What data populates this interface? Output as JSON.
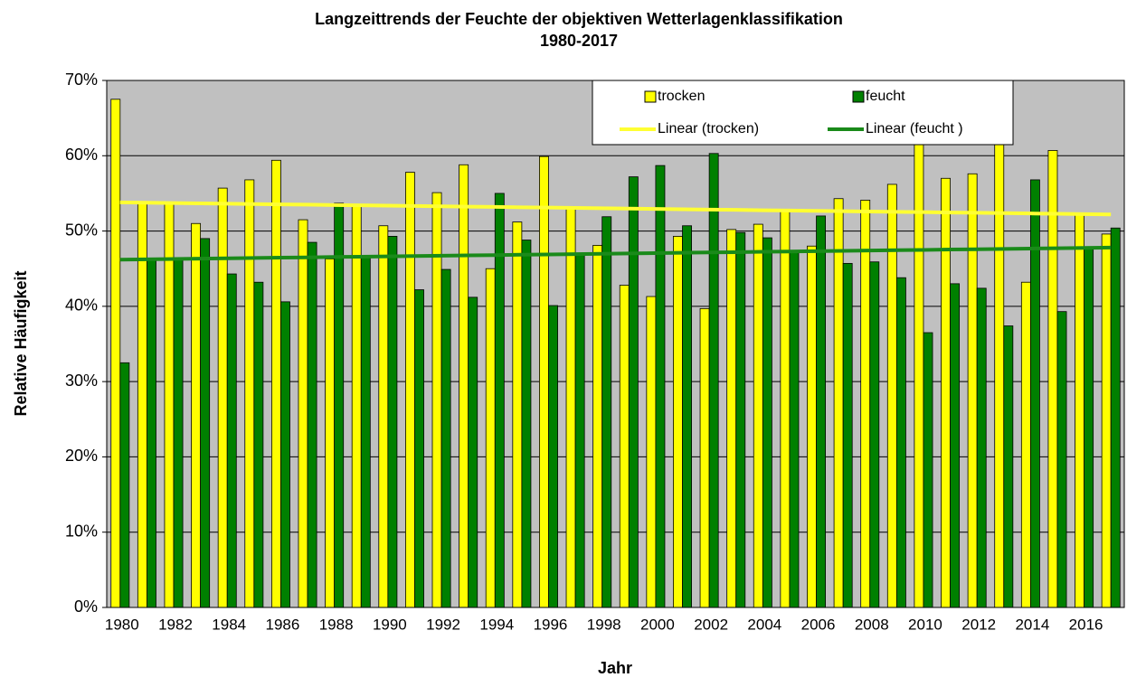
{
  "chart_data": {
    "type": "bar",
    "title": "Langzeittrends der Feuchte der objektiven Wetterlagenklassifikation",
    "subtitle": "1980-2017",
    "y_label": "Relative Häufigkeit",
    "x_label": "Jahr",
    "categories": [
      "1980",
      null,
      "1982",
      null,
      "1984",
      null,
      "1986",
      null,
      "1988",
      null,
      "1990",
      null,
      "1992",
      null,
      "1994",
      null,
      "1996",
      null,
      "1998",
      null,
      "2000",
      null,
      "2002",
      null,
      "2004",
      null,
      "2006",
      null,
      "2008",
      null,
      "2010",
      null,
      "2012",
      null,
      "2014",
      null,
      "2016",
      null
    ],
    "series": [
      {
        "name": "trocken",
        "color": "#ffff00",
        "values": [
          67.5,
          53.8,
          53.7,
          51,
          55.7,
          56.8,
          59.4,
          51.5,
          46.3,
          53.5,
          50.7,
          57.8,
          55.1,
          58.8,
          45,
          51.2,
          59.9,
          53,
          48.1,
          42.8,
          41.3,
          49.3,
          39.7,
          50.2,
          50.9,
          52.8,
          48,
          54.3,
          54.1,
          56.2,
          63.5,
          57,
          57.6,
          62.6,
          43.2,
          60.7,
          52.2,
          49.6
        ]
      },
      {
        "name": "feucht",
        "color": "#008000",
        "values": [
          32.5,
          46.2,
          46.3,
          49,
          44.3,
          43.2,
          40.6,
          48.5,
          53.7,
          46.5,
          49.3,
          42.2,
          44.9,
          41.2,
          55,
          48.8,
          40.1,
          47,
          51.9,
          57.2,
          58.7,
          50.7,
          60.3,
          49.8,
          49.1,
          47.2,
          52,
          45.7,
          45.9,
          43.8,
          36.5,
          43,
          42.4,
          37.4,
          56.8,
          39.3,
          47.8,
          50.4
        ]
      },
      {
        "name": "Linear (trocken)",
        "type": "line",
        "color": "#ffff33",
        "values": [
          53.8,
          53.76,
          53.71,
          53.67,
          53.63,
          53.58,
          53.54,
          53.5,
          53.45,
          53.41,
          53.37,
          53.32,
          53.28,
          53.24,
          53.2,
          53.15,
          53.11,
          53.07,
          53.02,
          52.98,
          52.94,
          52.89,
          52.85,
          52.81,
          52.76,
          52.72,
          52.68,
          52.64,
          52.59,
          52.55,
          52.51,
          52.46,
          52.42,
          52.38,
          52.33,
          52.29,
          52.25,
          52.2
        ]
      },
      {
        "name": "Linear (feucht )",
        "type": "line",
        "color": "#1a8a1a",
        "values": [
          46.2,
          46.24,
          46.29,
          46.33,
          46.37,
          46.42,
          46.46,
          46.5,
          46.55,
          46.59,
          46.63,
          46.68,
          46.72,
          46.76,
          46.8,
          46.85,
          46.89,
          46.93,
          46.98,
          47.02,
          47.06,
          47.11,
          47.15,
          47.19,
          47.24,
          47.28,
          47.32,
          47.36,
          47.41,
          47.45,
          47.49,
          47.54,
          47.58,
          47.62,
          47.67,
          47.71,
          47.75,
          47.8
        ]
      }
    ],
    "ylim": [
      0,
      70
    ],
    "yticks": [
      {
        "value": 0,
        "label": "0%"
      },
      {
        "value": 10,
        "label": "10%"
      },
      {
        "value": 20,
        "label": "20%"
      },
      {
        "value": 30,
        "label": "30%"
      },
      {
        "value": 40,
        "label": "40%"
      },
      {
        "value": 50,
        "label": "50%"
      },
      {
        "value": 60,
        "label": "60%"
      },
      {
        "value": 70,
        "label": "70%"
      }
    ],
    "grid": true,
    "plot_background": "#c0c0c0",
    "legend": "top-right"
  }
}
